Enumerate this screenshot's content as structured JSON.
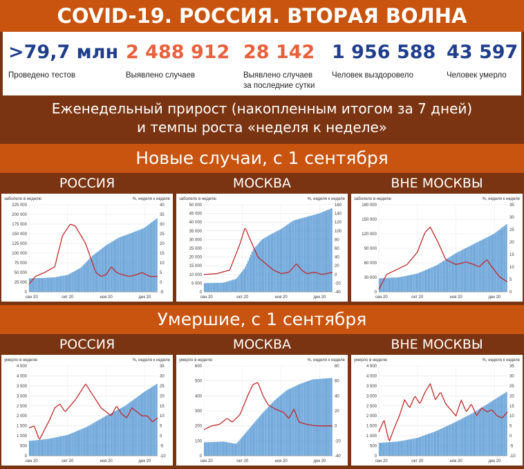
{
  "title": "COVID-19. РОССИЯ. ВТОРАЯ ВОЛНА",
  "stats": [
    {
      "value": ">79,7 млн",
      "label": "Проведено тестов",
      "label2": "",
      "color": "#1f3e8c"
    },
    {
      "value": "2 488 912",
      "label": "Выявлено случаев",
      "label2": "",
      "color": "#e8603c"
    },
    {
      "value": "28 142",
      "label": "Выявлено случаев",
      "label2": "за последние сутки",
      "color": "#e8603c"
    },
    {
      "value": "1 956 588",
      "label": "Человек выздоровело",
      "label2": "",
      "color": "#1f3e8c"
    },
    {
      "value": "43 597",
      "label": "Человек умерло",
      "label2": "",
      "color": "#1f3e8c"
    }
  ],
  "subtitle_line1": "Еженедельный прирост (накопленным итогом за 7 дней)",
  "subtitle_line2": "и темпы роста «неделя к неделе»",
  "section_cases": "Новые случаи, с 1 сентября",
  "section_deaths": "Умершие, с 1 сентября",
  "colors": {
    "bar": "#5b9bd5",
    "line": "#c0282a",
    "header": "#c8540f",
    "dark": "#7a3411"
  },
  "chart_data": [
    {
      "type": "bar",
      "panel_title": "РОССИЯ",
      "left_axis_label": "заболело в неделю",
      "right_axis_label": "%, неделя к неделе",
      "x_ticks": [
        "сен 20",
        "окт 20",
        "ноя 20",
        "дек 20"
      ],
      "y_left_ticks": [
        "225 000",
        "200 000",
        "175 000",
        "150 000",
        "125 000",
        "100 000",
        "75 000",
        "50 000",
        "25 000",
        "0"
      ],
      "y_right_ticks": [
        "40",
        "35",
        "30",
        "25",
        "20",
        "15",
        "10",
        "5",
        "0",
        "-5"
      ],
      "ylim_left": [
        0,
        225000
      ],
      "ylim_right": [
        -5,
        40
      ],
      "bar_keys": [
        [
          0,
          35000
        ],
        [
          10,
          36000
        ],
        [
          20,
          38000
        ],
        [
          30,
          44000
        ],
        [
          40,
          62000
        ],
        [
          50,
          95000
        ],
        [
          60,
          120000
        ],
        [
          70,
          140000
        ],
        [
          80,
          152000
        ],
        [
          90,
          165000
        ],
        [
          100,
          190000
        ]
      ],
      "line_keys": [
        [
          0,
          -1
        ],
        [
          5,
          3
        ],
        [
          12,
          5
        ],
        [
          20,
          8
        ],
        [
          26,
          24
        ],
        [
          32,
          30
        ],
        [
          36,
          29
        ],
        [
          44,
          20
        ],
        [
          52,
          5
        ],
        [
          56,
          3
        ],
        [
          60,
          4
        ],
        [
          64,
          8
        ],
        [
          68,
          5
        ],
        [
          72,
          4
        ],
        [
          78,
          3
        ],
        [
          84,
          4
        ],
        [
          88,
          5
        ],
        [
          94,
          3
        ],
        [
          100,
          3
        ]
      ]
    },
    {
      "type": "bar",
      "panel_title": "МОСКВА",
      "left_axis_label": "заболело в неделю",
      "right_axis_label": "%, неделя к неделе",
      "x_ticks": [
        "сен 20",
        "окт 20",
        "ноя 20",
        "дек 20"
      ],
      "y_left_ticks": [
        "50 000",
        "45 000",
        "40 000",
        "35 000",
        "30 000",
        "25 000",
        "20 000",
        "15 000",
        "10 000",
        "5 000",
        "0"
      ],
      "y_right_ticks": [
        "160",
        "140",
        "120",
        "100",
        "80",
        "60",
        "40",
        "20",
        "0",
        "-20",
        "-40"
      ],
      "ylim_left": [
        0,
        50000
      ],
      "ylim_right": [
        -40,
        160
      ],
      "bar_keys": [
        [
          0,
          5000
        ],
        [
          15,
          5300
        ],
        [
          25,
          7500
        ],
        [
          32,
          14000
        ],
        [
          38,
          24000
        ],
        [
          45,
          30000
        ],
        [
          52,
          33000
        ],
        [
          60,
          36000
        ],
        [
          70,
          41000
        ],
        [
          80,
          43000
        ],
        [
          90,
          45000
        ],
        [
          100,
          48000
        ]
      ],
      "line_keys": [
        [
          0,
          0
        ],
        [
          10,
          2
        ],
        [
          20,
          10
        ],
        [
          28,
          70
        ],
        [
          32,
          108
        ],
        [
          36,
          80
        ],
        [
          42,
          40
        ],
        [
          48,
          25
        ],
        [
          54,
          10
        ],
        [
          60,
          2
        ],
        [
          66,
          5
        ],
        [
          70,
          18
        ],
        [
          72,
          25
        ],
        [
          76,
          10
        ],
        [
          80,
          2
        ],
        [
          86,
          5
        ],
        [
          92,
          0
        ],
        [
          100,
          5
        ]
      ]
    },
    {
      "type": "bar",
      "panel_title": "ВНЕ МОСКВЫ",
      "left_axis_label": "заболело в неделю",
      "right_axis_label": "%, неделя к неделе",
      "x_ticks": [
        "сен 20",
        "окт 20",
        "ноя 20",
        "дек 20"
      ],
      "y_left_ticks": [
        "180 000",
        "150 000",
        "120 000",
        "90 000",
        "60 000",
        "30 000",
        "0"
      ],
      "y_right_ticks": [
        "35",
        "30",
        "25",
        "20",
        "15",
        "10",
        "5",
        "0"
      ],
      "ylim_left": [
        0,
        180000
      ],
      "ylim_right": [
        0,
        35
      ],
      "bar_keys": [
        [
          0,
          28000
        ],
        [
          15,
          30000
        ],
        [
          30,
          38000
        ],
        [
          45,
          55000
        ],
        [
          60,
          80000
        ],
        [
          75,
          100000
        ],
        [
          90,
          120000
        ],
        [
          100,
          140000
        ]
      ],
      "line_keys": [
        [
          0,
          1
        ],
        [
          6,
          7
        ],
        [
          14,
          9
        ],
        [
          22,
          11
        ],
        [
          30,
          16
        ],
        [
          36,
          24
        ],
        [
          40,
          26
        ],
        [
          46,
          20
        ],
        [
          52,
          13
        ],
        [
          60,
          11
        ],
        [
          68,
          12
        ],
        [
          74,
          11
        ],
        [
          78,
          10
        ],
        [
          84,
          13
        ],
        [
          88,
          10
        ],
        [
          94,
          6
        ],
        [
          100,
          4
        ]
      ]
    },
    {
      "type": "bar",
      "panel_title": "РОССИЯ",
      "left_axis_label": "умерло в неделю",
      "right_axis_label": "%, неделя к неделе",
      "x_ticks": [
        "сен 20",
        "окт 20",
        "ноя 20",
        "дек 20"
      ],
      "y_left_ticks": [
        "4 500",
        "4 000",
        "3 500",
        "3 000",
        "2 500",
        "2 000",
        "1 500",
        "1 000",
        "500",
        "0"
      ],
      "y_right_ticks": [
        "35",
        "30",
        "25",
        "20",
        "15",
        "10",
        "5",
        "0",
        "-5",
        "-10"
      ],
      "ylim_left": [
        0,
        4500
      ],
      "ylim_right": [
        -10,
        35
      ],
      "bar_keys": [
        [
          0,
          750
        ],
        [
          15,
          850
        ],
        [
          30,
          1050
        ],
        [
          45,
          1450
        ],
        [
          60,
          2000
        ],
        [
          75,
          2500
        ],
        [
          90,
          3200
        ],
        [
          100,
          3600
        ]
      ],
      "line_keys": [
        [
          0,
          4
        ],
        [
          4,
          5
        ],
        [
          8,
          -2
        ],
        [
          12,
          3
        ],
        [
          16,
          8
        ],
        [
          20,
          14
        ],
        [
          24,
          16
        ],
        [
          28,
          12
        ],
        [
          32,
          15
        ],
        [
          36,
          18
        ],
        [
          40,
          22
        ],
        [
          44,
          26
        ],
        [
          48,
          22
        ],
        [
          52,
          18
        ],
        [
          56,
          14
        ],
        [
          60,
          12
        ],
        [
          64,
          10
        ],
        [
          68,
          15
        ],
        [
          72,
          11
        ],
        [
          76,
          9
        ],
        [
          80,
          14
        ],
        [
          84,
          12
        ],
        [
          88,
          10
        ],
        [
          92,
          10
        ],
        [
          96,
          7
        ],
        [
          100,
          9
        ]
      ]
    },
    {
      "type": "bar",
      "panel_title": "МОСКВА",
      "left_axis_label": "умерло в неделю",
      "right_axis_label": "%, неделя к неделе",
      "x_ticks": [
        "сен 20",
        "окт 20",
        "ноя 20",
        "дек 20"
      ],
      "y_left_ticks": [
        "600",
        "500",
        "400",
        "300",
        "200",
        "100",
        "0"
      ],
      "y_right_ticks": [
        "80",
        "60",
        "40",
        "20",
        "0",
        "-20",
        "-40"
      ],
      "ylim_left": [
        0,
        600
      ],
      "ylim_right": [
        -40,
        80
      ],
      "bar_keys": [
        [
          0,
          90
        ],
        [
          15,
          95
        ],
        [
          25,
          80
        ],
        [
          35,
          180
        ],
        [
          45,
          280
        ],
        [
          55,
          370
        ],
        [
          65,
          440
        ],
        [
          75,
          480
        ],
        [
          85,
          510
        ],
        [
          100,
          520
        ]
      ],
      "line_keys": [
        [
          0,
          -5
        ],
        [
          6,
          0
        ],
        [
          12,
          2
        ],
        [
          18,
          10
        ],
        [
          22,
          5
        ],
        [
          28,
          15
        ],
        [
          34,
          40
        ],
        [
          38,
          55
        ],
        [
          42,
          58
        ],
        [
          46,
          40
        ],
        [
          50,
          28
        ],
        [
          56,
          22
        ],
        [
          62,
          18
        ],
        [
          66,
          10
        ],
        [
          70,
          22
        ],
        [
          74,
          5
        ],
        [
          80,
          2
        ],
        [
          88,
          0
        ],
        [
          100,
          0
        ]
      ]
    },
    {
      "type": "bar",
      "panel_title": "ВНЕ МОСКВЫ",
      "left_axis_label": "умерло в неделю",
      "right_axis_label": "%, неделя к неделе",
      "x_ticks": [
        "сен 20",
        "окт 20",
        "ноя 20",
        "дек 20"
      ],
      "y_left_ticks": [
        "4 500",
        "4 000",
        "3 500",
        "3 000",
        "2 500",
        "2 000",
        "1 500",
        "1 000",
        "500",
        "0"
      ],
      "y_right_ticks": [
        "35",
        "30",
        "25",
        "20",
        "15",
        "10",
        "5",
        "0",
        "-5",
        "-10"
      ],
      "ylim_left": [
        0,
        4500
      ],
      "ylim_right": [
        -10,
        35
      ],
      "bar_keys": [
        [
          0,
          650
        ],
        [
          15,
          720
        ],
        [
          30,
          900
        ],
        [
          45,
          1250
        ],
        [
          60,
          1700
        ],
        [
          75,
          2200
        ],
        [
          90,
          2800
        ],
        [
          100,
          3200
        ]
      ],
      "line_keys": [
        [
          0,
          2
        ],
        [
          4,
          8
        ],
        [
          8,
          -3
        ],
        [
          12,
          4
        ],
        [
          16,
          10
        ],
        [
          20,
          18
        ],
        [
          24,
          14
        ],
        [
          28,
          20
        ],
        [
          32,
          16
        ],
        [
          36,
          22
        ],
        [
          40,
          26
        ],
        [
          44,
          18
        ],
        [
          48,
          22
        ],
        [
          52,
          16
        ],
        [
          56,
          13
        ],
        [
          60,
          10
        ],
        [
          64,
          18
        ],
        [
          68,
          12
        ],
        [
          72,
          16
        ],
        [
          76,
          10
        ],
        [
          80,
          14
        ],
        [
          84,
          12
        ],
        [
          88,
          13
        ],
        [
          92,
          10
        ],
        [
          96,
          9
        ],
        [
          100,
          12
        ]
      ]
    }
  ]
}
